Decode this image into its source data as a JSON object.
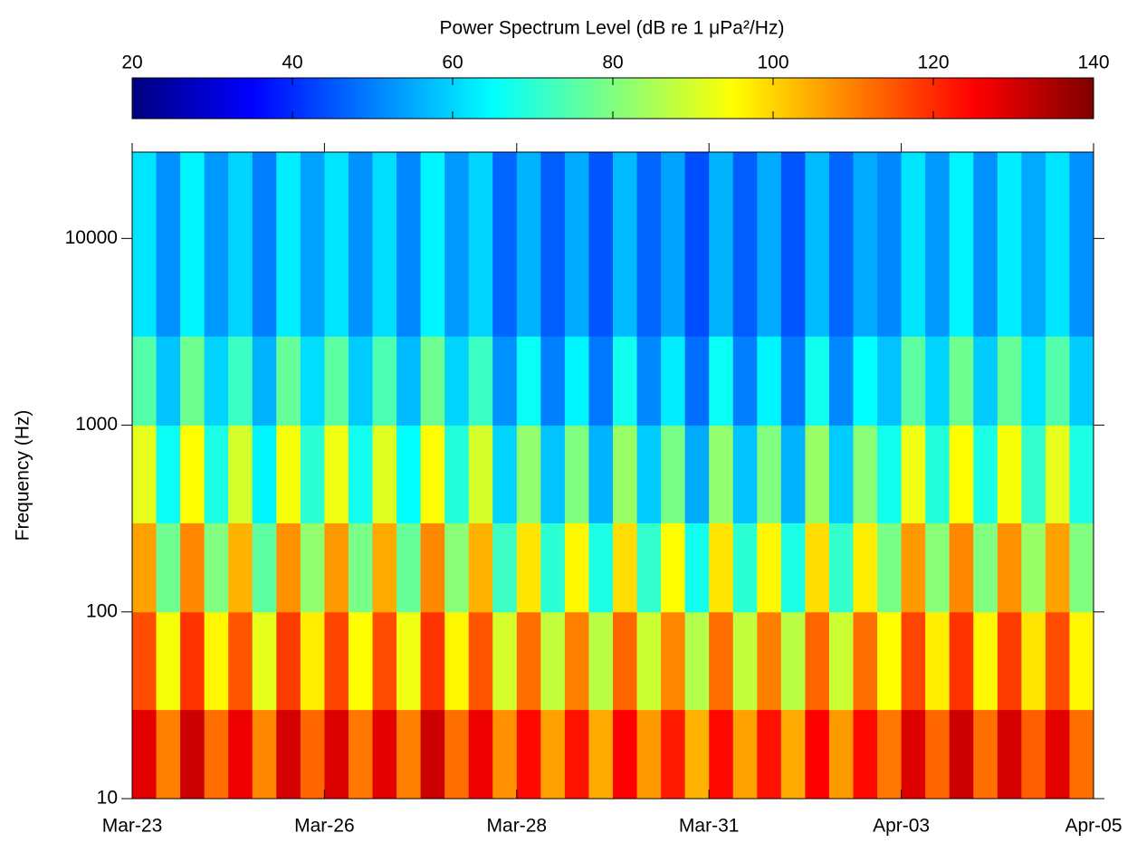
{
  "chart_data": {
    "type": "heatmap",
    "title": "Power Spectrum Level (dB re 1 μPa²/Hz)",
    "y_label": "Frequency (Hz)",
    "colormap": "jet",
    "clim": [
      20,
      140
    ],
    "cticks": [
      20,
      40,
      60,
      80,
      100,
      120,
      140
    ],
    "log_y": true,
    "xlim": [
      0,
      13
    ],
    "xticks": [
      {
        "value": 0,
        "label": "Mar-23"
      },
      {
        "value": 2.6,
        "label": "Mar-26"
      },
      {
        "value": 5.2,
        "label": "Mar-28"
      },
      {
        "value": 7.8,
        "label": "Mar-31"
      },
      {
        "value": 10.4,
        "label": "Apr-03"
      },
      {
        "value": 13,
        "label": "Apr-05"
      }
    ],
    "ylim": [
      10,
      29000
    ],
    "yticks": [
      10,
      100,
      1000,
      10000
    ],
    "x_bins": [
      0,
      0.325,
      0.65,
      0.975,
      1.3,
      1.625,
      1.95,
      2.275,
      2.6,
      2.925,
      3.25,
      3.575,
      3.9,
      4.225,
      4.55,
      4.875,
      5.2,
      5.525,
      5.85,
      6.175,
      6.5,
      6.825,
      7.15,
      7.475,
      7.8,
      8.125,
      8.45,
      8.775,
      9.1,
      9.425,
      9.75,
      10.075,
      10.4,
      10.725,
      11.05,
      11.375,
      11.7,
      12.025,
      12.35,
      12.675,
      13
    ],
    "y_bins": [
      10,
      30,
      100,
      300,
      1000,
      3000,
      29000
    ],
    "z": [
      [
        128,
        110,
        131,
        112,
        127,
        109,
        130,
        113,
        129,
        111,
        128,
        110,
        131,
        112,
        127,
        108,
        124,
        106,
        123,
        105,
        125,
        107,
        122,
        104,
        124,
        106,
        123,
        105,
        125,
        107,
        124,
        111,
        129,
        113,
        131,
        112,
        130,
        114,
        128,
        112
      ],
      [
        116,
        94,
        119,
        96,
        115,
        92,
        118,
        97,
        117,
        95,
        116,
        93,
        119,
        96,
        115,
        90,
        112,
        88,
        110,
        87,
        113,
        89,
        109,
        86,
        112,
        88,
        110,
        87,
        113,
        89,
        112,
        95,
        117,
        97,
        119,
        96,
        118,
        98,
        116,
        96
      ],
      [
        106,
        78,
        109,
        80,
        104,
        76,
        108,
        82,
        107,
        79,
        105,
        77,
        109,
        81,
        104,
        72,
        98,
        70,
        96,
        68,
        99,
        71,
        95,
        67,
        98,
        70,
        96,
        68,
        99,
        71,
        97,
        79,
        107,
        81,
        109,
        80,
        108,
        83,
        106,
        80
      ],
      [
        92,
        66,
        95,
        68,
        90,
        64,
        94,
        70,
        93,
        67,
        91,
        65,
        95,
        69,
        90,
        60,
        82,
        58,
        80,
        56,
        83,
        59,
        79,
        55,
        82,
        58,
        80,
        56,
        83,
        59,
        81,
        67,
        93,
        69,
        95,
        68,
        94,
        71,
        92,
        68
      ],
      [
        75,
        58,
        78,
        60,
        72,
        56,
        77,
        61,
        76,
        59,
        74,
        57,
        78,
        60,
        72,
        52,
        66,
        50,
        64,
        49,
        67,
        51,
        63,
        48,
        66,
        50,
        64,
        49,
        67,
        51,
        65,
        58,
        76,
        60,
        78,
        59,
        77,
        62,
        75,
        59
      ],
      [
        62,
        52,
        64,
        53,
        60,
        50,
        63,
        54,
        62,
        52,
        61,
        51,
        64,
        53,
        60,
        47,
        56,
        46,
        55,
        45,
        57,
        47,
        54,
        44,
        56,
        46,
        55,
        45,
        57,
        47,
        55,
        51,
        62,
        53,
        64,
        52,
        63,
        55,
        62,
        52
      ]
    ]
  }
}
